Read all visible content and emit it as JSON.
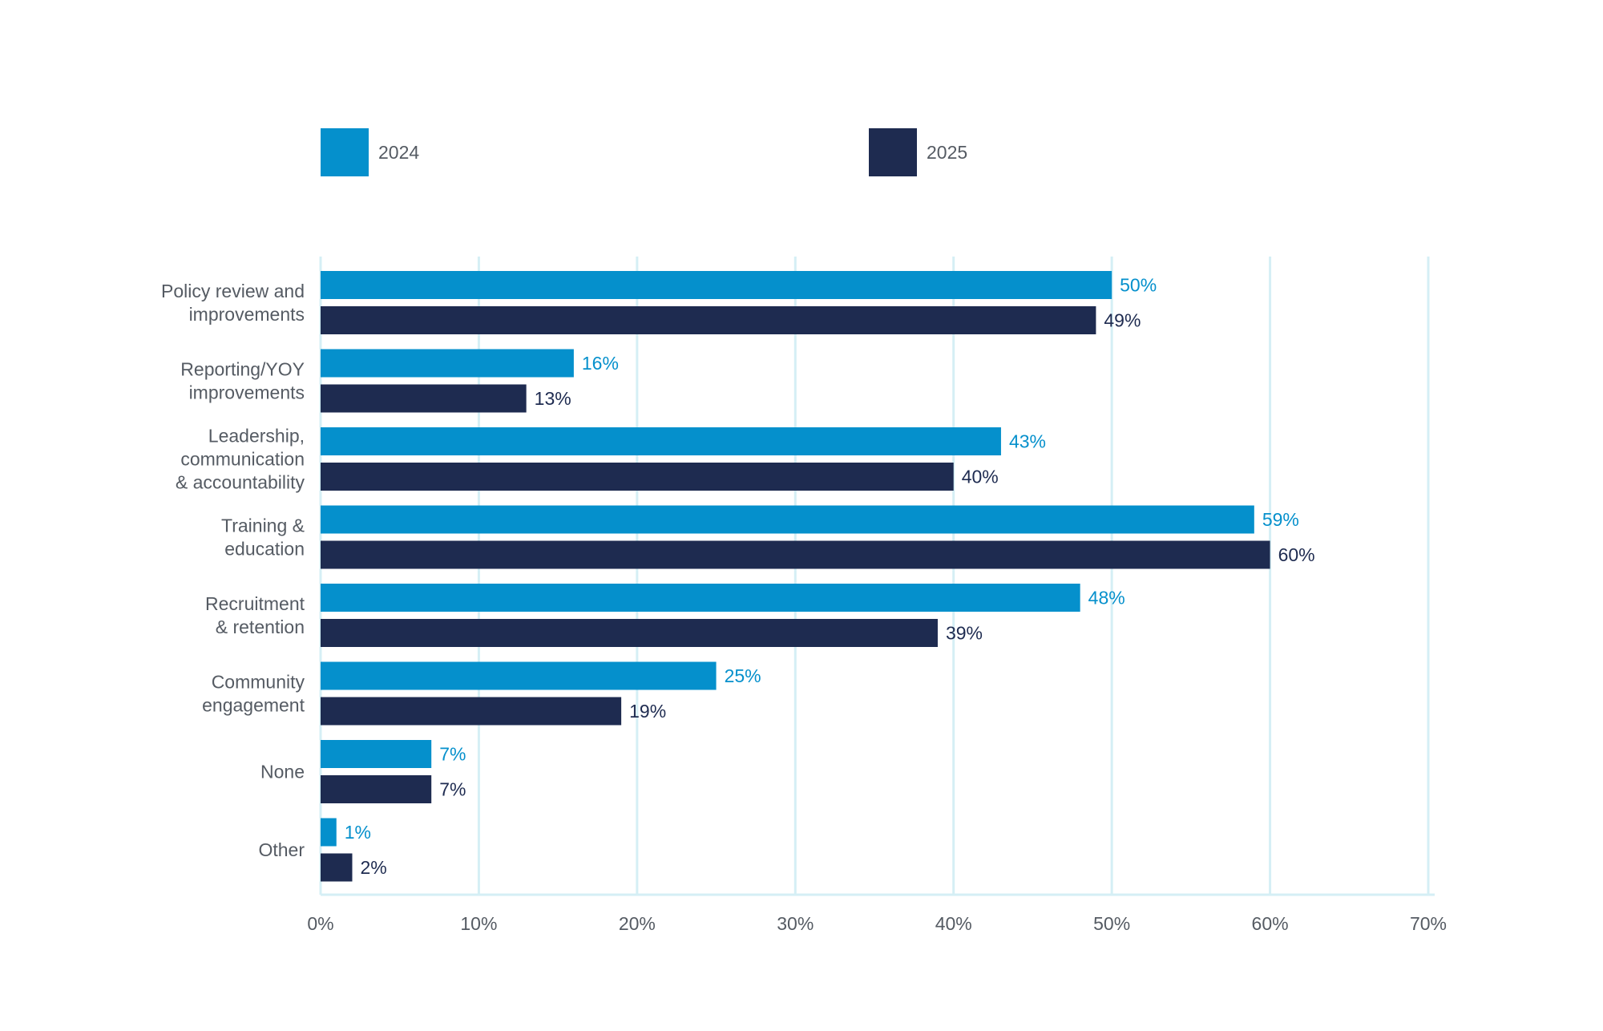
{
  "chart_data": {
    "type": "bar",
    "orientation": "horizontal",
    "categories": [
      [
        "Policy review and",
        "improvements"
      ],
      [
        "Reporting/YOY",
        "improvements"
      ],
      [
        "Leadership,",
        "communication",
        "& accountability"
      ],
      [
        "Training &",
        "education"
      ],
      [
        "Recruitment",
        "& retention"
      ],
      [
        "Community",
        "engagement"
      ],
      [
        "None"
      ],
      [
        "Other"
      ]
    ],
    "series": [
      {
        "name": "2024",
        "color": "#0590CC",
        "values": [
          50,
          16,
          43,
          59,
          48,
          25,
          7,
          1
        ],
        "labels": [
          "50%",
          "16%",
          "43%",
          "59%",
          "48%",
          "25%",
          "7%",
          "1%"
        ]
      },
      {
        "name": "2025",
        "color": "#1E2B50",
        "values": [
          49,
          13,
          40,
          60,
          39,
          19,
          7,
          2
        ],
        "labels": [
          "49%",
          "13%",
          "40%",
          "60%",
          "39%",
          "19%",
          "7%",
          "2%"
        ]
      }
    ],
    "xlim": [
      0,
      70
    ],
    "xticks": [
      "0%",
      "10%",
      "20%",
      "30%",
      "40%",
      "50%",
      "60%",
      "70%"
    ],
    "grid": true,
    "grid_color": "#D5EFF5",
    "legend_position": "top"
  }
}
